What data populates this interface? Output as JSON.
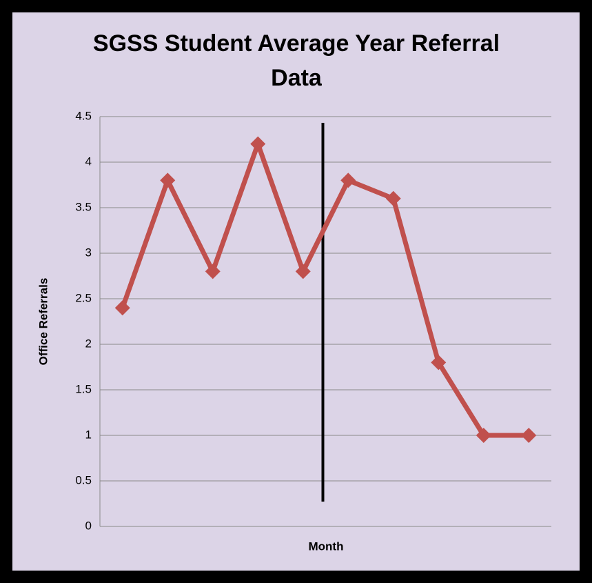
{
  "chart_data": {
    "type": "line",
    "title": "SGSS Student Average Year Referral Data",
    "x_label": "Month",
    "y_label": "Office Referrals",
    "categories": [
      null,
      null,
      null,
      null,
      null,
      null,
      null,
      null,
      null,
      null
    ],
    "series": [
      {
        "name": "Office Referrals",
        "color": "#c0504d",
        "values": [
          2.4,
          3.8,
          2.8,
          4.2,
          2.8,
          3.8,
          3.6,
          1.8,
          1.0,
          1.0
        ]
      }
    ],
    "ylim": [
      0,
      4.5
    ],
    "yticks": [
      0,
      0.5,
      1,
      1.5,
      2,
      2.5,
      3,
      3.5,
      4,
      4.5
    ],
    "grid": true,
    "legend": false
  }
}
